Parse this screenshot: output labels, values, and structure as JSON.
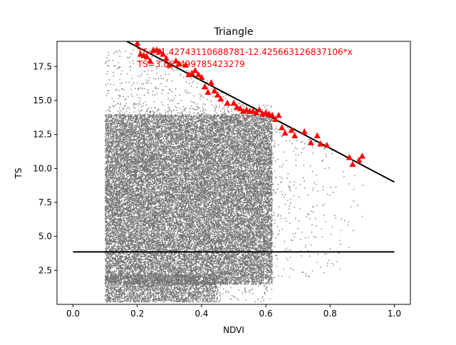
{
  "chart_data": {
    "type": "scatter",
    "title": "Triangle",
    "xlabel": "NDVI",
    "ylabel": "TS",
    "xlim": [
      -0.05,
      1.05
    ],
    "ylim": [
      0.0,
      19.35
    ],
    "x_ticks": [
      0.0,
      0.2,
      0.4,
      0.6,
      0.8,
      1.0
    ],
    "x_tick_labels": [
      "0.0",
      "0.2",
      "0.4",
      "0.6",
      "0.8",
      "1.0"
    ],
    "y_ticks": [
      2.5,
      5.0,
      7.5,
      10.0,
      12.5,
      15.0,
      17.5
    ],
    "y_tick_labels": [
      "2.5",
      "5.0",
      "7.5",
      "10.0",
      "12.5",
      "15.0",
      "17.5"
    ],
    "grid": false,
    "legend": "none",
    "colors": {
      "scatter": "#000000",
      "edge_points": "#ff0000",
      "lines": "#000000",
      "annotation": "#ff0000"
    },
    "scatter_cloud": {
      "ndvi_range": [
        0.1,
        0.92
      ],
      "ts_range": [
        0.2,
        18.8
      ],
      "dense_ndvi_range": [
        0.1,
        0.62
      ],
      "dense_ts_range": [
        1.5,
        14.0
      ]
    },
    "dry_edge_line": {
      "intercept": 21.42743110688781,
      "slope": -12.425663126837106,
      "x": [
        0.0,
        1.0
      ]
    },
    "wet_edge_line": {
      "value": 3.862499785423279,
      "x": [
        0.0,
        1.0
      ]
    },
    "edge_points": [
      [
        0.2,
        19.2
      ],
      [
        0.21,
        18.4
      ],
      [
        0.22,
        18.3
      ],
      [
        0.23,
        18.2
      ],
      [
        0.24,
        17.9
      ],
      [
        0.25,
        18.7
      ],
      [
        0.26,
        18.7
      ],
      [
        0.27,
        18.6
      ],
      [
        0.28,
        18.4
      ],
      [
        0.29,
        18.1
      ],
      [
        0.3,
        17.6
      ],
      [
        0.32,
        17.9
      ],
      [
        0.33,
        17.7
      ],
      [
        0.35,
        17.6
      ],
      [
        0.36,
        16.9
      ],
      [
        0.37,
        17.0
      ],
      [
        0.38,
        17.2
      ],
      [
        0.39,
        16.9
      ],
      [
        0.4,
        16.7
      ],
      [
        0.41,
        16.0
      ],
      [
        0.42,
        15.6
      ],
      [
        0.43,
        16.3
      ],
      [
        0.44,
        15.7
      ],
      [
        0.45,
        15.4
      ],
      [
        0.46,
        15.1
      ],
      [
        0.48,
        14.8
      ],
      [
        0.5,
        14.8
      ],
      [
        0.51,
        14.5
      ],
      [
        0.52,
        14.4
      ],
      [
        0.53,
        14.2
      ],
      [
        0.54,
        14.3
      ],
      [
        0.55,
        14.2
      ],
      [
        0.56,
        14.2
      ],
      [
        0.57,
        14.1
      ],
      [
        0.58,
        14.3
      ],
      [
        0.59,
        14.0
      ],
      [
        0.6,
        14.1
      ],
      [
        0.61,
        14.0
      ],
      [
        0.62,
        13.9
      ],
      [
        0.63,
        13.6
      ],
      [
        0.64,
        13.9
      ],
      [
        0.65,
        13.0
      ],
      [
        0.66,
        12.6
      ],
      [
        0.68,
        12.8
      ],
      [
        0.69,
        12.4
      ],
      [
        0.72,
        12.7
      ],
      [
        0.74,
        11.9
      ],
      [
        0.76,
        12.4
      ],
      [
        0.77,
        11.8
      ],
      [
        0.79,
        11.7
      ],
      [
        0.86,
        10.8
      ],
      [
        0.87,
        10.3
      ],
      [
        0.89,
        10.6
      ],
      [
        0.9,
        10.9
      ]
    ],
    "annotations": [
      "TS=21.42743110688781-12.425663126837106*x",
      "TS=3.862499785423279"
    ]
  }
}
